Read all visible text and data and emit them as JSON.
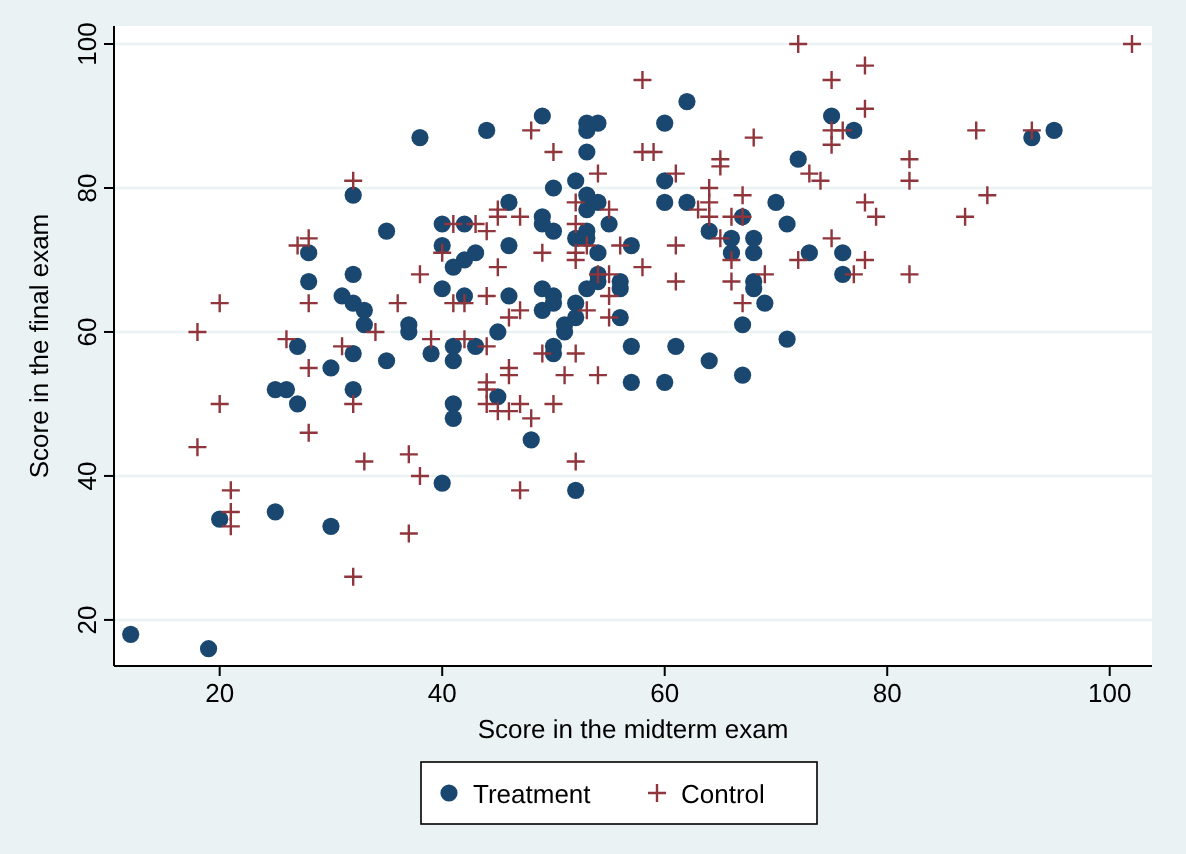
{
  "chart_data": {
    "type": "scatter",
    "xlabel": "Score in the midterm exam",
    "ylabel": "Score in the final exam",
    "xlim": [
      10.5,
      103.8
    ],
    "ylim": [
      13.6,
      102.5
    ],
    "xticks": [
      20,
      40,
      60,
      80,
      100
    ],
    "yticks": [
      20,
      40,
      60,
      80,
      100
    ],
    "grid": "y",
    "legend": "bottom",
    "series": [
      {
        "name": "Treatment",
        "color": "#1a476f",
        "marker": "circle",
        "x": [
          27,
          32,
          35,
          30,
          25,
          26,
          27,
          32,
          39,
          41,
          41,
          43,
          45,
          41,
          41,
          45,
          40,
          20,
          25,
          30,
          12,
          19,
          37,
          38,
          44,
          32,
          35,
          40,
          42,
          40,
          28,
          41,
          42,
          43,
          46,
          46,
          28,
          32,
          40,
          31,
          32,
          33,
          42,
          46,
          33,
          37,
          62,
          49,
          53,
          54,
          53,
          60,
          53,
          75,
          77,
          72,
          50,
          52,
          53,
          54,
          53,
          55,
          60,
          60,
          62,
          64,
          67,
          70,
          71,
          66,
          68,
          66,
          68,
          73,
          76,
          76,
          49,
          49,
          50,
          52,
          53,
          53,
          54,
          57,
          54,
          54,
          56,
          56,
          53,
          49,
          49,
          50,
          50,
          52,
          52,
          51,
          56,
          68,
          68,
          69,
          67,
          71,
          51,
          50,
          50,
          57,
          61,
          64,
          67,
          57,
          60,
          48,
          52,
          93,
          95
        ],
        "values": [
          58,
          57,
          56,
          55,
          52,
          52,
          50,
          52,
          57,
          58,
          56,
          58,
          60,
          50,
          48,
          51,
          39,
          34,
          35,
          33,
          18,
          16,
          60,
          87,
          88,
          79,
          74,
          75,
          75,
          72,
          71,
          69,
          70,
          71,
          78,
          72,
          67,
          68,
          66,
          65,
          64,
          63,
          65,
          65,
          61,
          61,
          92,
          90,
          89,
          89,
          88,
          89,
          85,
          90,
          88,
          84,
          80,
          81,
          79,
          78,
          77,
          75,
          81,
          78,
          78,
          74,
          76,
          78,
          75,
          73,
          73,
          71,
          71,
          71,
          71,
          68,
          76,
          75,
          74,
          73,
          74,
          73,
          71,
          72,
          68,
          67,
          67,
          66,
          66,
          66,
          63,
          65,
          64,
          64,
          62,
          61,
          62,
          67,
          66,
          64,
          61,
          59,
          60,
          58,
          57,
          58,
          58,
          56,
          54,
          53,
          53,
          45,
          38,
          87,
          88
        ]
      },
      {
        "name": "Control",
        "color": "#90353b",
        "marker": "cross",
        "x": [
          18,
          26,
          31,
          34,
          28,
          39,
          42,
          44,
          44,
          44,
          44,
          45,
          46,
          46,
          46,
          20,
          32,
          18,
          28,
          37,
          33,
          38,
          21,
          21,
          21,
          37,
          32,
          32,
          27,
          28,
          40,
          45,
          45,
          41,
          43,
          44,
          45,
          38,
          20,
          28,
          36,
          41,
          42,
          44,
          46,
          72,
          58,
          75,
          78,
          78,
          48,
          50,
          58,
          59,
          68,
          65,
          65,
          75,
          76,
          75,
          54,
          61,
          73,
          74,
          64,
          64,
          64,
          63,
          67,
          67,
          66,
          47,
          52,
          55,
          52,
          53,
          56,
          65,
          78,
          79,
          75,
          49,
          52,
          52,
          61,
          58,
          66,
          72,
          78,
          54,
          55,
          61,
          66,
          69,
          77,
          55,
          47,
          53,
          55,
          67,
          102,
          88,
          93,
          82,
          82,
          89,
          87,
          82,
          49,
          52,
          51,
          54,
          47,
          50,
          48,
          52,
          47
        ],
        "values": [
          60,
          59,
          58,
          60,
          55,
          59,
          59,
          58,
          53,
          52,
          50,
          49,
          49,
          55,
          54,
          50,
          50,
          44,
          46,
          43,
          42,
          40,
          38,
          35,
          33,
          32,
          26,
          81,
          72,
          73,
          71,
          77,
          76,
          75,
          75,
          74,
          69,
          68,
          64,
          64,
          64,
          64,
          64,
          65,
          62,
          100,
          95,
          95,
          97,
          91,
          88,
          85,
          85,
          85,
          87,
          84,
          83,
          88,
          88,
          86,
          82,
          82,
          82,
          81,
          80,
          78,
          76,
          77,
          79,
          76,
          76,
          76,
          78,
          77,
          75,
          72,
          72,
          73,
          78,
          76,
          73,
          71,
          71,
          70,
          72,
          69,
          70,
          70,
          70,
          68,
          68,
          67,
          67,
          68,
          68,
          65,
          63,
          63,
          62,
          64,
          100,
          88,
          88,
          84,
          81,
          79,
          76,
          68,
          57,
          57,
          54,
          54,
          50,
          50,
          48,
          42,
          38
        ]
      }
    ]
  }
}
